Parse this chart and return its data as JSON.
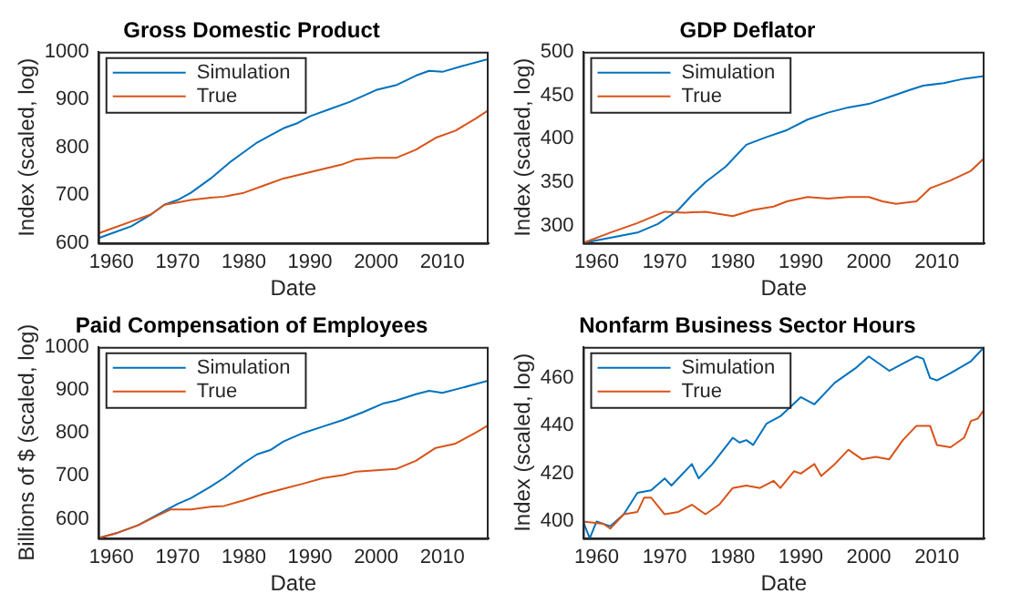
{
  "chart_data": [
    {
      "type": "line",
      "title": "Gross Domestic Product",
      "xlabel": "Date",
      "ylabel": "Index (scaled, log)",
      "xlim": [
        1958,
        2017
      ],
      "xticks": [
        1960,
        1970,
        1980,
        1990,
        2000,
        2010
      ],
      "ylim": [
        600,
        1000
      ],
      "yticks": [
        600,
        700,
        800,
        900,
        1000
      ],
      "legend": "top left",
      "series": [
        {
          "name": "Simulation",
          "color": "#0072bd",
          "x": [
            1958,
            1960,
            1963,
            1966,
            1968,
            1970,
            1972,
            1975,
            1978,
            1980,
            1982,
            1984,
            1986,
            1988,
            1990,
            1993,
            1996,
            2000,
            2003,
            2006,
            2008,
            2010,
            2013,
            2017
          ],
          "values": [
            610,
            620,
            635,
            660,
            680,
            690,
            705,
            735,
            770,
            790,
            810,
            825,
            840,
            850,
            865,
            880,
            895,
            920,
            930,
            950,
            960,
            958,
            970,
            985
          ]
        },
        {
          "name": "True",
          "color": "#d95319",
          "x": [
            1958,
            1960,
            1963,
            1966,
            1968,
            1970,
            1972,
            1975,
            1977,
            1980,
            1983,
            1986,
            1989,
            1992,
            1995,
            1997,
            2000,
            2003,
            2006,
            2009,
            2012,
            2015,
            2017
          ],
          "values": [
            620,
            630,
            645,
            660,
            680,
            685,
            690,
            695,
            697,
            705,
            720,
            735,
            745,
            755,
            765,
            775,
            778,
            778,
            795,
            820,
            835,
            860,
            878
          ]
        }
      ]
    },
    {
      "type": "line",
      "title": "GDP Deflator",
      "xlabel": "Date",
      "ylabel": "Index (scaled, log)",
      "xlim": [
        1958,
        2017
      ],
      "xticks": [
        1960,
        1970,
        1980,
        1990,
        2000,
        2010
      ],
      "ylim": [
        280,
        500
      ],
      "yticks": [
        300,
        350,
        400,
        450,
        500
      ],
      "legend": "top left",
      "series": [
        {
          "name": "Simulation",
          "color": "#0072bd",
          "x": [
            1958,
            1962,
            1966,
            1969,
            1972,
            1974,
            1976,
            1979,
            1982,
            1985,
            1988,
            1991,
            1994,
            1997,
            2000,
            2003,
            2006,
            2008,
            2011,
            2014,
            2017
          ],
          "values": [
            280,
            286,
            292,
            302,
            318,
            335,
            350,
            368,
            393,
            402,
            410,
            422,
            430,
            436,
            440,
            448,
            456,
            461,
            464,
            469,
            472
          ]
        },
        {
          "name": "True",
          "color": "#d95319",
          "x": [
            1958,
            1962,
            1966,
            1970,
            1973,
            1976,
            1980,
            1983,
            1986,
            1988,
            1991,
            1994,
            1997,
            2000,
            2002,
            2004,
            2007,
            2009,
            2012,
            2015,
            2017
          ],
          "values": [
            280,
            292,
            303,
            316,
            315,
            316,
            311,
            318,
            322,
            328,
            333,
            331,
            333,
            333,
            328,
            325,
            328,
            343,
            352,
            363,
            378
          ]
        }
      ]
    },
    {
      "type": "line",
      "title": "Paid Compensation of Employees",
      "xlabel": "Date",
      "ylabel": "Billions of $ (scaled, log)",
      "xlim": [
        1958,
        2017
      ],
      "xticks": [
        1960,
        1970,
        1980,
        1990,
        2000,
        2010
      ],
      "ylim": [
        555,
        1000
      ],
      "yticks": [
        600,
        700,
        800,
        900,
        1000
      ],
      "legend": "top left",
      "series": [
        {
          "name": "Simulation",
          "color": "#0072bd",
          "x": [
            1958,
            1961,
            1964,
            1967,
            1970,
            1972,
            1975,
            1977,
            1980,
            1982,
            1984,
            1986,
            1989,
            1992,
            1995,
            1998,
            2001,
            2003,
            2006,
            2008,
            2010,
            2013,
            2017
          ],
          "values": [
            555,
            568,
            585,
            610,
            635,
            648,
            675,
            695,
            730,
            750,
            760,
            780,
            800,
            815,
            830,
            848,
            868,
            875,
            890,
            898,
            893,
            905,
            922
          ]
        },
        {
          "name": "True",
          "color": "#d95319",
          "x": [
            1958,
            1961,
            1964,
            1967,
            1969,
            1972,
            1975,
            1977,
            1980,
            1983,
            1986,
            1989,
            1992,
            1995,
            1997,
            2000,
            2003,
            2006,
            2009,
            2012,
            2015,
            2017
          ],
          "values": [
            555,
            568,
            585,
            608,
            622,
            622,
            628,
            630,
            643,
            658,
            670,
            682,
            695,
            702,
            710,
            713,
            716,
            735,
            765,
            775,
            800,
            818
          ]
        }
      ]
    },
    {
      "type": "line",
      "title": "Nonfarm Business Sector Hours",
      "xlabel": "Date",
      "ylabel": "Index (scaled, log)",
      "xlim": [
        1958,
        2017
      ],
      "xticks": [
        1960,
        1970,
        1980,
        1990,
        2000,
        2010
      ],
      "ylim": [
        393,
        473
      ],
      "yticks": [
        400,
        420,
        440,
        460
      ],
      "legend": "top left",
      "series": [
        {
          "name": "Simulation",
          "color": "#0072bd",
          "x": [
            1958,
            1959,
            1960,
            1962,
            1964,
            1966,
            1968,
            1970,
            1971,
            1974,
            1975,
            1977,
            1980,
            1981,
            1982,
            1983,
            1985,
            1987,
            1990,
            1992,
            1995,
            1998,
            2000,
            2002,
            2003,
            2005,
            2007,
            2008,
            2009,
            2010,
            2012,
            2015,
            2017
          ],
          "values": [
            400,
            393,
            400,
            398,
            403,
            412,
            413,
            418,
            415,
            424,
            418,
            424,
            435,
            433,
            434,
            432,
            441,
            444,
            452,
            449,
            458,
            464,
            469,
            465,
            463,
            466,
            469,
            468,
            460,
            459,
            462,
            467,
            473
          ]
        },
        {
          "name": "True",
          "color": "#d95319",
          "x": [
            1958,
            1961,
            1962,
            1964,
            1966,
            1967,
            1968,
            1970,
            1972,
            1974,
            1976,
            1978,
            1980,
            1982,
            1984,
            1986,
            1987,
            1989,
            1990,
            1992,
            1993,
            1995,
            1997,
            1999,
            2001,
            2003,
            2005,
            2007,
            2009,
            2010,
            2012,
            2014,
            2015,
            2016,
            2017
          ],
          "values": [
            400,
            399,
            397,
            403,
            404,
            410,
            410,
            403,
            404,
            407,
            403,
            407,
            414,
            415,
            414,
            417,
            414,
            421,
            420,
            424,
            419,
            424,
            430,
            426,
            427,
            426,
            434,
            440,
            440,
            432,
            431,
            435,
            442,
            443,
            447
          ]
        }
      ]
    }
  ]
}
